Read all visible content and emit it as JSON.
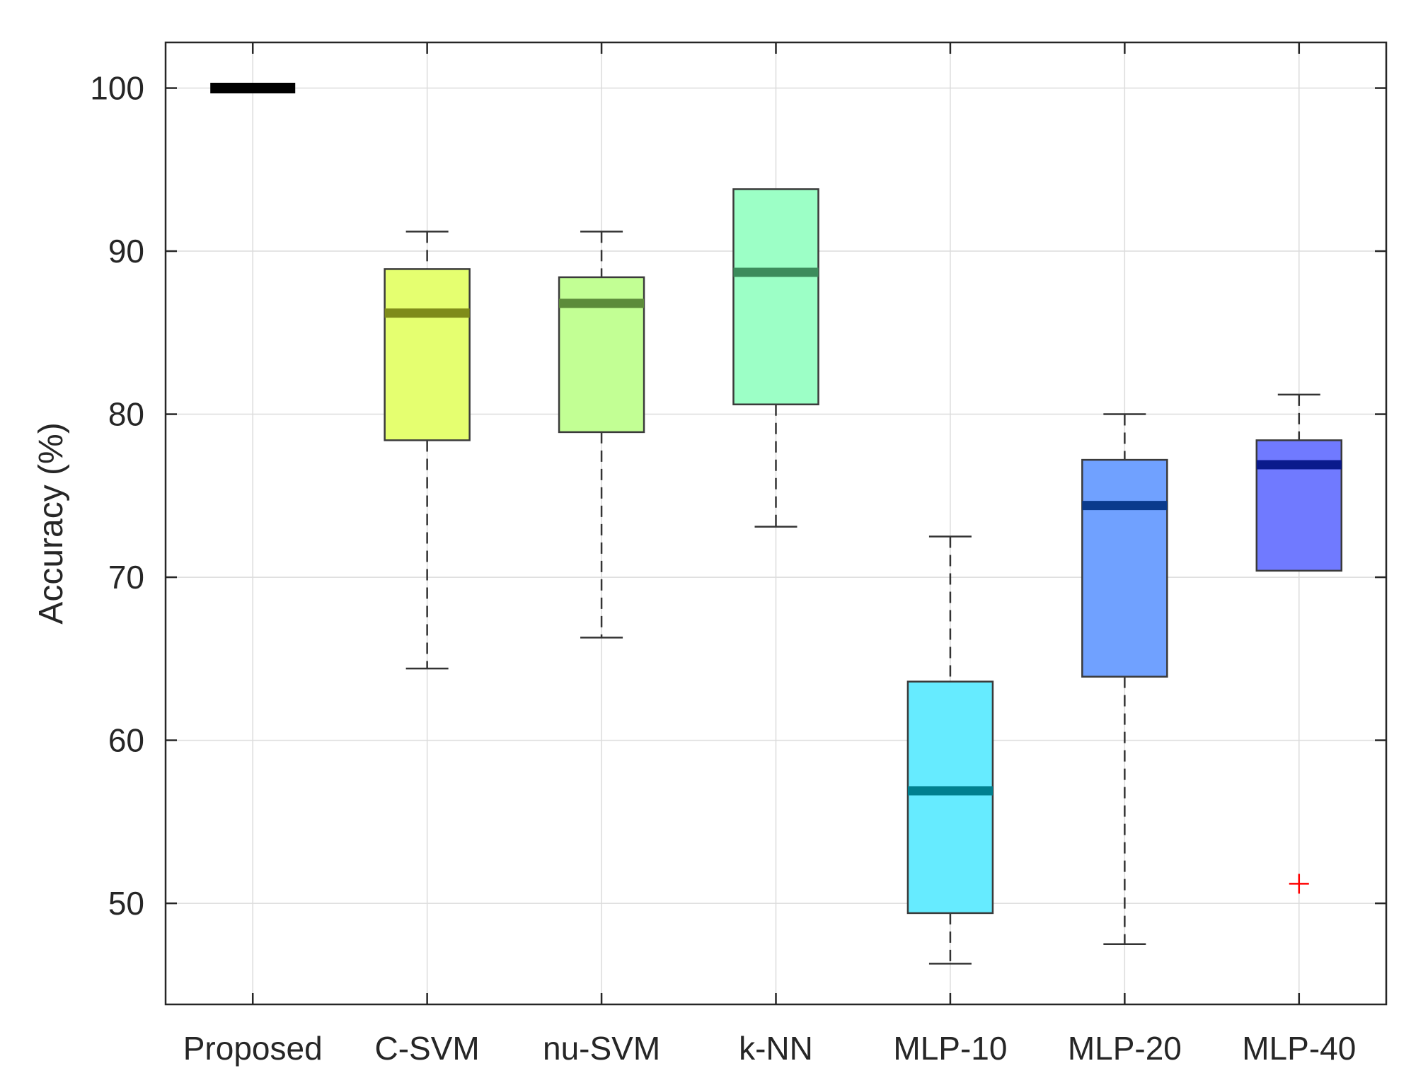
{
  "chart_data": {
    "type": "boxplot",
    "title": "",
    "xlabel": "",
    "ylabel": "Accuracy (%)",
    "ylim": [
      43.8,
      102.8
    ],
    "yticks": [
      50,
      60,
      70,
      80,
      90,
      100
    ],
    "grid": true,
    "categories": [
      "Proposed",
      "C-SVM",
      "nu-SVM",
      "k-NN",
      "MLP-10",
      "MLP-20",
      "MLP-40"
    ],
    "boxes": [
      {
        "name": "Proposed",
        "whisker_low": 100,
        "q1": 100,
        "median": 100,
        "q3": 100,
        "whisker_high": 100,
        "outliers": [],
        "color": "#000000"
      },
      {
        "name": "C-SVM",
        "whisker_low": 64.4,
        "q1": 78.4,
        "median": 86.2,
        "q3": 88.9,
        "whisker_high": 91.2,
        "outliers": [],
        "color": "#e5ff70"
      },
      {
        "name": "nu-SVM",
        "whisker_low": 66.3,
        "q1": 78.9,
        "median": 86.8,
        "q3": 88.4,
        "whisker_high": 91.2,
        "outliers": [],
        "color": "#c2ff94"
      },
      {
        "name": "k-NN",
        "whisker_low": 73.1,
        "q1": 80.6,
        "median": 88.7,
        "q3": 93.8,
        "whisker_high": 93.8,
        "outliers": [],
        "color": "#9cffc6"
      },
      {
        "name": "MLP-10",
        "whisker_low": 46.3,
        "q1": 49.4,
        "median": 56.9,
        "q3": 63.6,
        "whisker_high": 72.5,
        "outliers": [],
        "color": "#66ebff"
      },
      {
        "name": "MLP-20",
        "whisker_low": 47.5,
        "q1": 63.9,
        "median": 74.4,
        "q3": 77.2,
        "whisker_high": 80.0,
        "outliers": [],
        "color": "#70a1ff"
      },
      {
        "name": "MLP-40",
        "whisker_low": 70.4,
        "q1": 70.4,
        "median": 76.9,
        "q3": 78.4,
        "whisker_high": 81.2,
        "outliers": [
          51.2
        ],
        "color": "#707aff"
      }
    ],
    "median_colors": [
      "#000000",
      "#7f8c1a",
      "#5c8c3a",
      "#3d8c5c",
      "#00808f",
      "#0a3a8c",
      "#0a1a8c"
    ],
    "outlier_color": "#ff0000"
  }
}
